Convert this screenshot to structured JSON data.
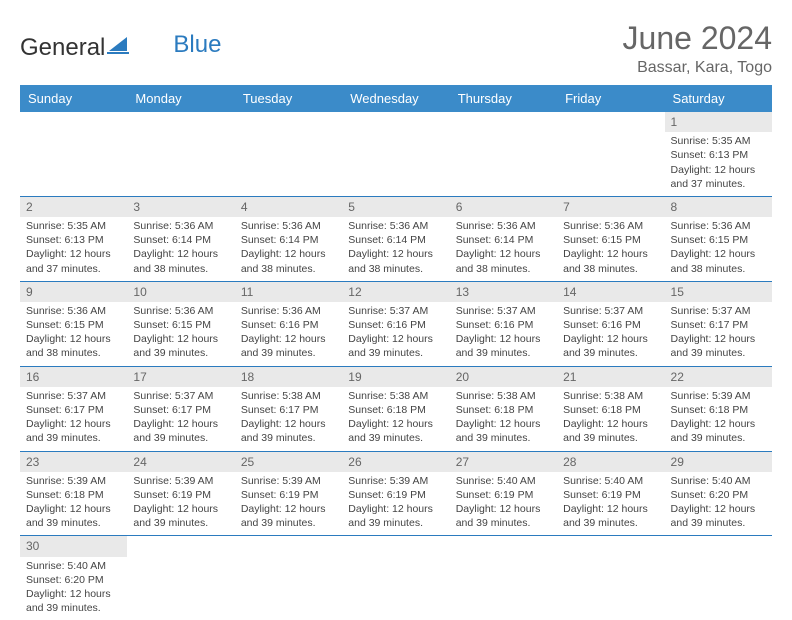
{
  "logo": {
    "text1": "General",
    "text2": "Blue"
  },
  "title": {
    "month": "June 2024",
    "location": "Bassar, Kara, Togo"
  },
  "colors": {
    "header_bg": "#3b8bc9",
    "header_text": "#ffffff",
    "daynum_bg": "#e9e9e9",
    "border": "#2b7bbf",
    "logo_blue": "#2b7bbf",
    "title_gray": "#666666"
  },
  "weekdays": [
    "Sunday",
    "Monday",
    "Tuesday",
    "Wednesday",
    "Thursday",
    "Friday",
    "Saturday"
  ],
  "first_weekday_index": 6,
  "days": [
    {
      "n": 1,
      "sunrise": "5:35 AM",
      "sunset": "6:13 PM",
      "daylight": "12 hours and 37 minutes."
    },
    {
      "n": 2,
      "sunrise": "5:35 AM",
      "sunset": "6:13 PM",
      "daylight": "12 hours and 37 minutes."
    },
    {
      "n": 3,
      "sunrise": "5:36 AM",
      "sunset": "6:14 PM",
      "daylight": "12 hours and 38 minutes."
    },
    {
      "n": 4,
      "sunrise": "5:36 AM",
      "sunset": "6:14 PM",
      "daylight": "12 hours and 38 minutes."
    },
    {
      "n": 5,
      "sunrise": "5:36 AM",
      "sunset": "6:14 PM",
      "daylight": "12 hours and 38 minutes."
    },
    {
      "n": 6,
      "sunrise": "5:36 AM",
      "sunset": "6:14 PM",
      "daylight": "12 hours and 38 minutes."
    },
    {
      "n": 7,
      "sunrise": "5:36 AM",
      "sunset": "6:15 PM",
      "daylight": "12 hours and 38 minutes."
    },
    {
      "n": 8,
      "sunrise": "5:36 AM",
      "sunset": "6:15 PM",
      "daylight": "12 hours and 38 minutes."
    },
    {
      "n": 9,
      "sunrise": "5:36 AM",
      "sunset": "6:15 PM",
      "daylight": "12 hours and 38 minutes."
    },
    {
      "n": 10,
      "sunrise": "5:36 AM",
      "sunset": "6:15 PM",
      "daylight": "12 hours and 39 minutes."
    },
    {
      "n": 11,
      "sunrise": "5:36 AM",
      "sunset": "6:16 PM",
      "daylight": "12 hours and 39 minutes."
    },
    {
      "n": 12,
      "sunrise": "5:37 AM",
      "sunset": "6:16 PM",
      "daylight": "12 hours and 39 minutes."
    },
    {
      "n": 13,
      "sunrise": "5:37 AM",
      "sunset": "6:16 PM",
      "daylight": "12 hours and 39 minutes."
    },
    {
      "n": 14,
      "sunrise": "5:37 AM",
      "sunset": "6:16 PM",
      "daylight": "12 hours and 39 minutes."
    },
    {
      "n": 15,
      "sunrise": "5:37 AM",
      "sunset": "6:17 PM",
      "daylight": "12 hours and 39 minutes."
    },
    {
      "n": 16,
      "sunrise": "5:37 AM",
      "sunset": "6:17 PM",
      "daylight": "12 hours and 39 minutes."
    },
    {
      "n": 17,
      "sunrise": "5:37 AM",
      "sunset": "6:17 PM",
      "daylight": "12 hours and 39 minutes."
    },
    {
      "n": 18,
      "sunrise": "5:38 AM",
      "sunset": "6:17 PM",
      "daylight": "12 hours and 39 minutes."
    },
    {
      "n": 19,
      "sunrise": "5:38 AM",
      "sunset": "6:18 PM",
      "daylight": "12 hours and 39 minutes."
    },
    {
      "n": 20,
      "sunrise": "5:38 AM",
      "sunset": "6:18 PM",
      "daylight": "12 hours and 39 minutes."
    },
    {
      "n": 21,
      "sunrise": "5:38 AM",
      "sunset": "6:18 PM",
      "daylight": "12 hours and 39 minutes."
    },
    {
      "n": 22,
      "sunrise": "5:39 AM",
      "sunset": "6:18 PM",
      "daylight": "12 hours and 39 minutes."
    },
    {
      "n": 23,
      "sunrise": "5:39 AM",
      "sunset": "6:18 PM",
      "daylight": "12 hours and 39 minutes."
    },
    {
      "n": 24,
      "sunrise": "5:39 AM",
      "sunset": "6:19 PM",
      "daylight": "12 hours and 39 minutes."
    },
    {
      "n": 25,
      "sunrise": "5:39 AM",
      "sunset": "6:19 PM",
      "daylight": "12 hours and 39 minutes."
    },
    {
      "n": 26,
      "sunrise": "5:39 AM",
      "sunset": "6:19 PM",
      "daylight": "12 hours and 39 minutes."
    },
    {
      "n": 27,
      "sunrise": "5:40 AM",
      "sunset": "6:19 PM",
      "daylight": "12 hours and 39 minutes."
    },
    {
      "n": 28,
      "sunrise": "5:40 AM",
      "sunset": "6:19 PM",
      "daylight": "12 hours and 39 minutes."
    },
    {
      "n": 29,
      "sunrise": "5:40 AM",
      "sunset": "6:20 PM",
      "daylight": "12 hours and 39 minutes."
    },
    {
      "n": 30,
      "sunrise": "5:40 AM",
      "sunset": "6:20 PM",
      "daylight": "12 hours and 39 minutes."
    }
  ],
  "labels": {
    "sunrise": "Sunrise: ",
    "sunset": "Sunset: ",
    "daylight": "Daylight: "
  }
}
